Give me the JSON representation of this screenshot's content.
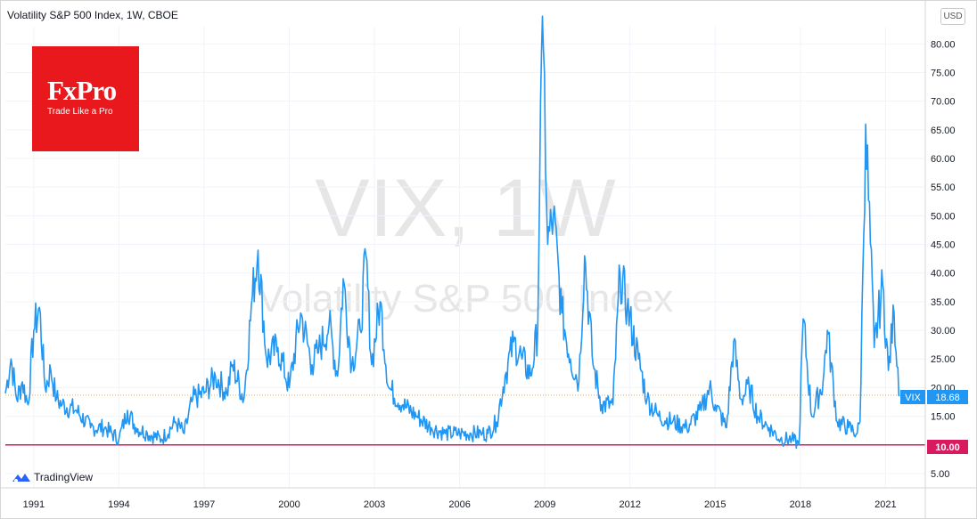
{
  "header": {
    "title": "Volatility S&P 500 Index, 1W, CBOE",
    "currency": "USD"
  },
  "watermark": {
    "line1": "VIX, 1W",
    "line2": "Volatility S&P 500 Index"
  },
  "logo": {
    "brand": "FxPro",
    "tagline": "Trade Like a Pro",
    "color": "#e9181d"
  },
  "footer": {
    "brand": "TradingView"
  },
  "price_tags": {
    "current_name": "VIX",
    "current_value": "18.68",
    "level_value": "10.00"
  },
  "colors": {
    "series": "#2196f3",
    "level": "#d81b60",
    "current_line": "#f5a623"
  },
  "chart_data": {
    "type": "line",
    "title": "Volatility S&P 500 Index, 1W, CBOE",
    "xlabel": "",
    "ylabel": "",
    "ylim": [
      2.5,
      83
    ],
    "xlim": [
      1990.0,
      2022.4
    ],
    "y_ticks": [
      "5.00",
      "10.00",
      "15.00",
      "20.00",
      "25.00",
      "30.00",
      "35.00",
      "40.00",
      "45.00",
      "50.00",
      "55.00",
      "60.00",
      "65.00",
      "70.00",
      "75.00",
      "80.00"
    ],
    "x_ticks": [
      "1991",
      "1994",
      "1997",
      "2000",
      "2003",
      "2006",
      "2009",
      "2012",
      "2015",
      "2018",
      "2021"
    ],
    "grid": true,
    "horizontal_lines": [
      {
        "value": 10.0,
        "label": "10.00",
        "style": "solid"
      },
      {
        "value": 18.68,
        "label": "18.68",
        "style": "dotted"
      }
    ],
    "series": [
      {
        "name": "VIX",
        "x": [
          1990.0,
          1990.2,
          1990.4,
          1990.6,
          1990.8,
          1991.0,
          1991.2,
          1991.4,
          1991.6,
          1991.8,
          1992.0,
          1992.5,
          1993.0,
          1993.5,
          1994.0,
          1994.3,
          1994.6,
          1995.0,
          1995.5,
          1996.0,
          1996.3,
          1996.6,
          1997.0,
          1997.4,
          1997.8,
          1998.0,
          1998.4,
          1998.7,
          1998.9,
          1999.2,
          1999.6,
          2000.0,
          2000.4,
          2000.8,
          2001.0,
          2001.4,
          2001.7,
          2001.9,
          2002.2,
          2002.5,
          2002.7,
          2002.9,
          2003.2,
          2003.5,
          2004.0,
          2004.5,
          2005.0,
          2005.5,
          2006.0,
          2006.4,
          2006.8,
          2007.0,
          2007.3,
          2007.6,
          2007.9,
          2008.2,
          2008.5,
          2008.75,
          2008.85,
          2008.95,
          2009.1,
          2009.3,
          2009.6,
          2009.9,
          2010.2,
          2010.4,
          2010.7,
          2011.0,
          2011.4,
          2011.65,
          2011.9,
          2012.3,
          2012.6,
          2013.0,
          2013.5,
          2014.0,
          2014.5,
          2014.8,
          2015.0,
          2015.4,
          2015.65,
          2015.9,
          2016.2,
          2016.5,
          2016.9,
          2017.3,
          2017.7,
          2017.95,
          2018.1,
          2018.4,
          2018.8,
          2018.95,
          2019.3,
          2019.7,
          2020.0,
          2020.1,
          2020.2,
          2020.3,
          2020.6,
          2020.9,
          2021.1,
          2021.3,
          2021.5
        ],
        "values": [
          19,
          25,
          18,
          21,
          17,
          30,
          34,
          20,
          23,
          18,
          17,
          16,
          13,
          13,
          11,
          16,
          13,
          12,
          11,
          14,
          12,
          18,
          19,
          22,
          19,
          24,
          18,
          36,
          44,
          25,
          27,
          20,
          33,
          24,
          26,
          31,
          22,
          39,
          24,
          30,
          43,
          24,
          35,
          20,
          17,
          15,
          13,
          12,
          12,
          12,
          12,
          12,
          14,
          22,
          28,
          25,
          22,
          30,
          70,
          79,
          45,
          50,
          33,
          25,
          21,
          43,
          24,
          17,
          17,
          40,
          34,
          25,
          18,
          15,
          14,
          13,
          16,
          20,
          17,
          13,
          28,
          18,
          20,
          15,
          13,
          11,
          11,
          10,
          32,
          15,
          21,
          30,
          14,
          13,
          12,
          14,
          40,
          66,
          27,
          38,
          23,
          33,
          18.68
        ]
      }
    ]
  }
}
